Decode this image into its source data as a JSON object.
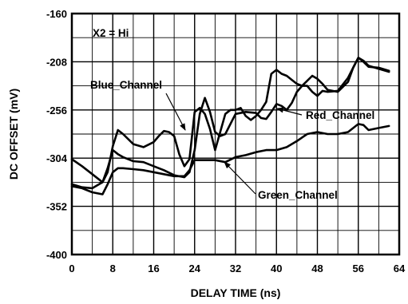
{
  "chart_data": {
    "type": "line",
    "title": "",
    "xlabel": "DELAY TIME (ns)",
    "ylabel": "DC OFFSET (mV)",
    "xlim": [
      0,
      64
    ],
    "ylim": [
      -400,
      -160
    ],
    "xticks": [
      0,
      8,
      16,
      24,
      32,
      40,
      48,
      56,
      64
    ],
    "yticks": [
      -400,
      -352,
      -304,
      -256,
      -208,
      -160
    ],
    "grid": true,
    "condition_label": "X2 = Hi",
    "series": [
      {
        "name": "Blue_Channel",
        "color": "#000000",
        "x": [
          0,
          2,
          4,
          6,
          7,
          8,
          9,
          10,
          12,
          14,
          16,
          17,
          18,
          19,
          20,
          21,
          22,
          23,
          24,
          25,
          26,
          27,
          28,
          29,
          30,
          31,
          32,
          33,
          34,
          35,
          36,
          37,
          38,
          39,
          40,
          41,
          42,
          43,
          44,
          45,
          46,
          47,
          48,
          49,
          50,
          52,
          54,
          55,
          56,
          57,
          58,
          60,
          62
        ],
        "values": [
          -305,
          -312,
          -320,
          -328,
          -318,
          -292,
          -276,
          -280,
          -290,
          -293,
          -288,
          -282,
          -277,
          -278,
          -282,
          -300,
          -312,
          -305,
          -258,
          -254,
          -260,
          -275,
          -296,
          -278,
          -260,
          -256,
          -256,
          -254,
          -262,
          -266,
          -262,
          -256,
          -248,
          -220,
          -216,
          -220,
          -222,
          -226,
          -230,
          -232,
          -232,
          -238,
          -242,
          -237,
          -238,
          -237,
          -224,
          -214,
          -204,
          -208,
          -213,
          -214,
          -217
        ]
      },
      {
        "name": "Red_Channel",
        "color": "#000000",
        "x": [
          0,
          2,
          4,
          6,
          7,
          8,
          9,
          10,
          12,
          14,
          16,
          18,
          20,
          22,
          23,
          24,
          25,
          26,
          27,
          28,
          29,
          30,
          31,
          32,
          34,
          36,
          37,
          38,
          39,
          40,
          41,
          42,
          43,
          44,
          45,
          46,
          47,
          48,
          49,
          50,
          52,
          54,
          55,
          56,
          57,
          58,
          60,
          62
        ],
        "values": [
          -330,
          -333,
          -334,
          -328,
          -314,
          -296,
          -300,
          -303,
          -307,
          -308,
          -312,
          -316,
          -321,
          -323,
          -318,
          -296,
          -260,
          -244,
          -258,
          -278,
          -282,
          -280,
          -270,
          -260,
          -258,
          -259,
          -264,
          -265,
          -258,
          -250,
          -252,
          -256,
          -249,
          -238,
          -232,
          -227,
          -222,
          -225,
          -230,
          -236,
          -238,
          -228,
          -214,
          -204,
          -207,
          -212,
          -215,
          -218
        ]
      },
      {
        "name": "Green_Channel",
        "color": "#000000",
        "x": [
          0,
          2,
          4,
          6,
          7,
          8,
          9,
          10,
          12,
          14,
          16,
          18,
          20,
          22,
          23,
          24,
          26,
          28,
          30,
          32,
          34,
          36,
          38,
          40,
          42,
          44,
          46,
          48,
          50,
          52,
          54,
          56,
          57,
          58,
          60,
          62
        ],
        "values": [
          -332,
          -334,
          -338,
          -340,
          -330,
          -318,
          -314,
          -314,
          -315,
          -316,
          -318,
          -320,
          -322,
          -322,
          -316,
          -306,
          -306,
          -306,
          -308,
          -303,
          -301,
          -298,
          -296,
          -296,
          -293,
          -287,
          -280,
          -278,
          -280,
          -280,
          -278,
          -270,
          -271,
          -276,
          -274,
          -272
        ]
      }
    ],
    "annotations": [
      {
        "text": "Blue_Channel",
        "points_to_series": "Blue_Channel"
      },
      {
        "text": "Red_Channel",
        "points_to_series": "Red_Channel"
      },
      {
        "text": "Green_Channel",
        "points_to_series": "Green_Channel"
      }
    ]
  }
}
